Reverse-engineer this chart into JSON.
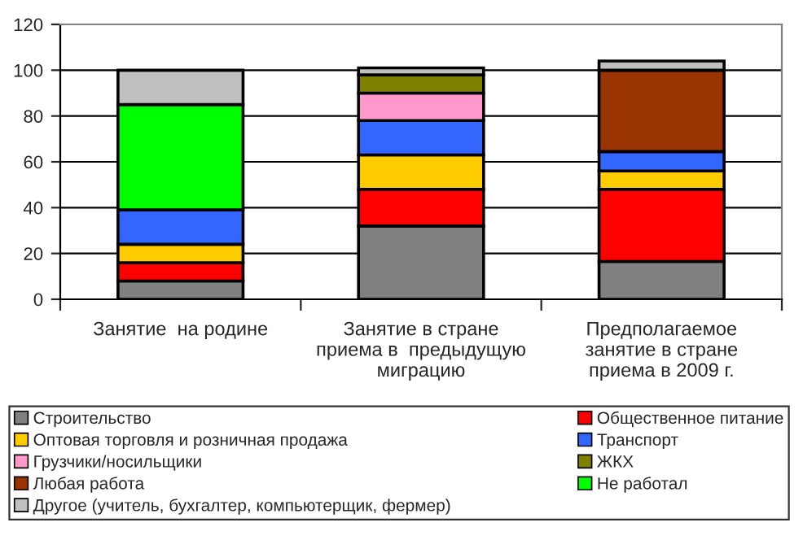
{
  "chart_data": {
    "type": "bar",
    "stacked": true,
    "categories": [
      "Занятие  на родине",
      "Занятие в стране\nприема в  предыдущую\nмиграцию",
      "Предполагаемое\nзанятие в стране\nприема в 2009 г."
    ],
    "series": [
      {
        "name": "Строительство",
        "color": "#808080",
        "values": [
          8,
          32,
          16.5
        ]
      },
      {
        "name": "Общественное питание",
        "color": "#ff0000",
        "values": [
          8,
          16,
          31.5
        ]
      },
      {
        "name": "Оптовая торговля и розничная продажа",
        "color": "#ffcc00",
        "values": [
          8,
          15,
          8
        ]
      },
      {
        "name": "Транспорт",
        "color": "#3366ff",
        "values": [
          15,
          15,
          8.5
        ]
      },
      {
        "name": "Грузчики/носильщики",
        "color": "#ff99cc",
        "values": [
          null,
          12,
          null
        ]
      },
      {
        "name": "ЖКХ",
        "color": "#808000",
        "values": [
          null,
          8,
          null
        ]
      },
      {
        "name": "Любая работа",
        "color": "#993300",
        "values": [
          null,
          null,
          35.5
        ]
      },
      {
        "name": "Не работал",
        "color": "#00ff00",
        "values": [
          46,
          null,
          null
        ]
      },
      {
        "name": "Другое (учитель, бухгалтер, компьютерщик, фермер)",
        "color": "#c0c0c0",
        "values": [
          15,
          3,
          4
        ]
      }
    ],
    "ylim": [
      0,
      120
    ],
    "yticks": [
      0,
      20,
      40,
      60,
      80,
      100,
      120
    ],
    "grid": "y",
    "legend": "bottom"
  }
}
